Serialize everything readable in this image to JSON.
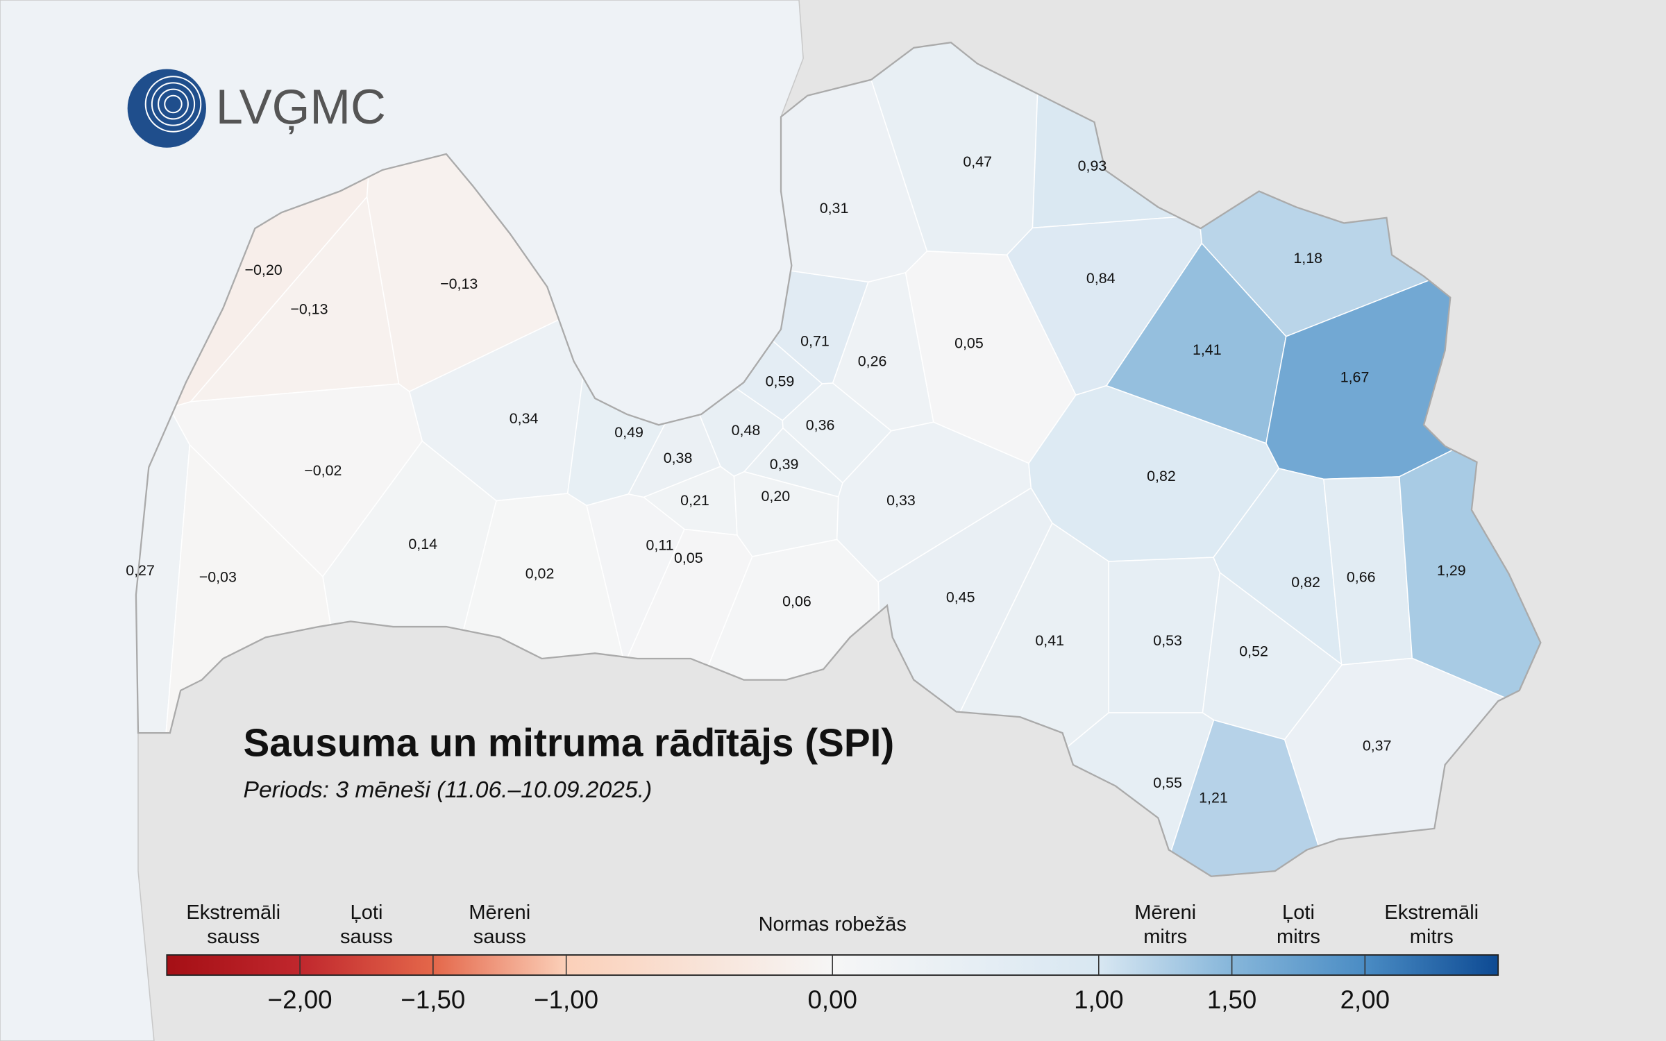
{
  "map": {
    "logo": "LVĢMC",
    "title": "Sausuma un mitruma rādītājs (SPI)",
    "subtitle": "Periods: 3 mēneši (11.06.–10.09.2025.)",
    "regions": {
      "values": [
        -0.2,
        -0.13,
        -0.13,
        0.34,
        -0.02,
        0.14,
        0.27,
        -0.03,
        0.02,
        0.49,
        0.38,
        0.21,
        0.11,
        0.05,
        0.48,
        0.39,
        0.2,
        0.36,
        0.59,
        0.71,
        0.26,
        0.31,
        0.47,
        0.93,
        0.84,
        1.18,
        0.05,
        1.41,
        1.67,
        0.33,
        0.82,
        0.45,
        0.06,
        0.41,
        0.53,
        0.52,
        0.82,
        0.66,
        1.29,
        0.37,
        0.55,
        1.21
      ],
      "value_labels": [
        "−0,20",
        "−0,13",
        "−0,13",
        "0,34",
        "−0,02",
        "0,14",
        "0,27",
        "−0,03",
        "0,02",
        "0,49",
        "0,38",
        "0,21",
        "0,11",
        "0,05",
        "0,48",
        "0,39",
        "0,20",
        "0,36",
        "0,59",
        "0,71",
        "0,26",
        "0,31",
        "0,47",
        "0,93",
        "0,84",
        "1,18",
        "0,05",
        "1,41",
        "1,67",
        "0,33",
        "0,82",
        "0,45",
        "0,06",
        "0,41",
        "0,53",
        "0,52",
        "0,82",
        "0,66",
        "1,29",
        "0,37",
        "0,55",
        "1,21"
      ]
    },
    "legend": {
      "lim": [
        -2.5,
        2.5
      ],
      "classes": [
        {
          "label": [
            "Ekstremāli",
            "sauss"
          ],
          "range": [
            -2.5,
            -2
          ]
        },
        {
          "label": [
            "Ļoti",
            "sauss"
          ],
          "range": [
            -2,
            -1.5
          ]
        },
        {
          "label": [
            "Mēreni",
            "sauss"
          ],
          "range": [
            -1.5,
            -1
          ]
        },
        {
          "label": [
            "Normas robežās"
          ],
          "range": [
            -1,
            1
          ]
        },
        {
          "label": [
            "Mēreni",
            "mitrs"
          ],
          "range": [
            1,
            1.5
          ]
        },
        {
          "label": [
            "Ļoti",
            "mitrs"
          ],
          "range": [
            1.5,
            2
          ]
        },
        {
          "label": [
            "Ekstremāli",
            "mitrs"
          ],
          "range": [
            2,
            2.5
          ]
        }
      ],
      "ticks": [
        {
          "value": -2,
          "label": "−2,00"
        },
        {
          "value": -1.5,
          "label": "−1,50"
        },
        {
          "value": -1,
          "label": "−1,00"
        },
        {
          "value": 0,
          "label": "0,00"
        },
        {
          "value": 1,
          "label": "1,00"
        },
        {
          "value": 1.5,
          "label": "1,50"
        },
        {
          "value": 2,
          "label": "2,00"
        }
      ],
      "colors": [
        {
          "value": -2.5,
          "color": "#a50f15"
        },
        {
          "value": -2,
          "color": "#c0272d"
        },
        {
          "value": -1.5,
          "color": "#e4674a"
        },
        {
          "value": -1,
          "color": "#fbd0b9"
        },
        {
          "value": 0,
          "color": "#f6f6f6"
        },
        {
          "value": 1,
          "color": "#d8e7f2"
        },
        {
          "value": 1.5,
          "color": "#86b6da"
        },
        {
          "value": 2,
          "color": "#4a8cc4"
        },
        {
          "value": 2.5,
          "color": "#0d4a93"
        }
      ]
    }
  }
}
